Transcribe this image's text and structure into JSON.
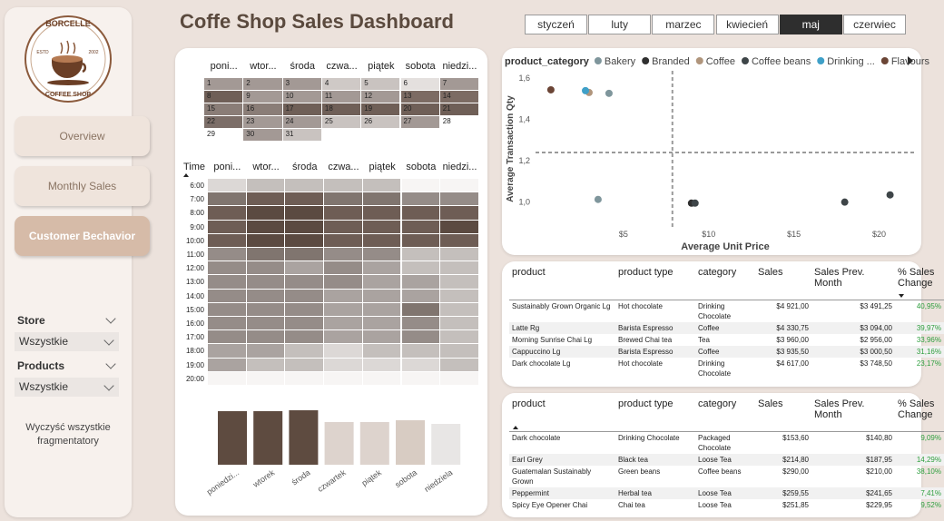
{
  "sidebar": {
    "logo": {
      "brand": "BORCELLE",
      "est": "ESTD",
      "year": "2002",
      "sub": "COFFEE SHOP"
    },
    "nav": [
      "Overview",
      "Monthly Sales",
      "Customer Bechavior"
    ],
    "active_nav": 2,
    "filters": [
      {
        "label": "Store",
        "value": "Wszystkie"
      },
      {
        "label": "Products",
        "value": "Wszystkie"
      }
    ],
    "clear": "Wyczyść wszystkie fragmentatory"
  },
  "header": {
    "title": "Coffe Shop Sales Dashboard",
    "months": [
      "styczeń",
      "luty",
      "marzec",
      "kwiecień",
      "maj",
      "czerwiec"
    ],
    "active_month": 4
  },
  "calendar": {
    "days": [
      "poni...",
      "wtor...",
      "środa",
      "czwa...",
      "piątek",
      "sobota",
      "niedzi..."
    ],
    "weeks": [
      [
        {
          "day": 1,
          "color": "#a39995"
        },
        {
          "day": 2,
          "color": "#a39995"
        },
        {
          "day": 3,
          "color": "#a39995"
        },
        {
          "day": 4,
          "color": "#cfc9c6"
        },
        {
          "day": 5,
          "color": "#c9c3c0"
        },
        {
          "day": 6,
          "color": "#e4e0de"
        },
        {
          "day": 7,
          "color": "#a39995"
        }
      ],
      [
        {
          "day": 8,
          "color": "#6f5f57"
        },
        {
          "day": 9,
          "color": "#a39995"
        },
        {
          "day": 10,
          "color": "#a39995"
        },
        {
          "day": 11,
          "color": "#a39995"
        },
        {
          "day": 12,
          "color": "#a39995"
        },
        {
          "day": 13,
          "color": "#7c6b63"
        },
        {
          "day": 14,
          "color": "#7c6b63"
        }
      ],
      [
        {
          "day": 15,
          "color": "#8a7d77"
        },
        {
          "day": 16,
          "color": "#8a7d77"
        },
        {
          "day": 17,
          "color": "#6f5f57"
        },
        {
          "day": 18,
          "color": "#6f5f57"
        },
        {
          "day": 19,
          "color": "#6f5f57"
        },
        {
          "day": 20,
          "color": "#6f5f57"
        },
        {
          "day": 21,
          "color": "#6f5f57"
        }
      ],
      [
        {
          "day": 22,
          "color": "#7c6e68"
        },
        {
          "day": 23,
          "color": "#a39995"
        },
        {
          "day": 24,
          "color": "#a39995"
        },
        {
          "day": 25,
          "color": "#c9c3c0"
        },
        {
          "day": 26,
          "color": "#c9c3c0"
        },
        {
          "day": 27,
          "color": "#a39995"
        },
        {
          "day": 28,
          "color": "#ffffff"
        }
      ],
      [
        {
          "day": 29,
          "color": "#ffffff"
        },
        {
          "day": 30,
          "color": "#a39995"
        },
        {
          "day": 31,
          "color": "#c9c3c0"
        },
        null,
        null,
        null,
        null
      ]
    ]
  },
  "heatmap": {
    "time_header": "Time",
    "days": [
      "poni...",
      "wtor...",
      "środa",
      "czwa...",
      "piątek",
      "sobota",
      "niedzi..."
    ],
    "rows": [
      {
        "time": "6:00",
        "colors": [
          "#dcd8d6",
          "#c4bfbc",
          "#c4bfbc",
          "#c4bfbc",
          "#c4bfbc",
          "#f7f5f4",
          "#f7f5f4"
        ]
      },
      {
        "time": "7:00",
        "colors": [
          "#80756f",
          "#6e5d55",
          "#6e5d55",
          "#80756f",
          "#80756f",
          "#958c88",
          "#958c88"
        ]
      },
      {
        "time": "8:00",
        "colors": [
          "#6e5d55",
          "#5b4a41",
          "#5b4a41",
          "#6e5d55",
          "#6e5d55",
          "#6e5d55",
          "#6e5d55"
        ]
      },
      {
        "time": "9:00",
        "colors": [
          "#6e5d55",
          "#5b4a41",
          "#5b4a41",
          "#6e5d55",
          "#6e5d55",
          "#6e5d55",
          "#5b4a41"
        ]
      },
      {
        "time": "10:00",
        "colors": [
          "#6e5d55",
          "#5b4a41",
          "#5b4a41",
          "#6e5d55",
          "#6e5d55",
          "#6e5d55",
          "#6e5d55"
        ]
      },
      {
        "time": "11:00",
        "colors": [
          "#958c88",
          "#80756f",
          "#80756f",
          "#958c88",
          "#958c88",
          "#c4bfbc",
          "#c4bfbc"
        ]
      },
      {
        "time": "12:00",
        "colors": [
          "#958c88",
          "#958c88",
          "#aaa3a0",
          "#958c88",
          "#aaa3a0",
          "#c4bfbc",
          "#c4bfbc"
        ]
      },
      {
        "time": "13:00",
        "colors": [
          "#958c88",
          "#958c88",
          "#958c88",
          "#958c88",
          "#aaa3a0",
          "#aaa3a0",
          "#c4bfbc"
        ]
      },
      {
        "time": "14:00",
        "colors": [
          "#958c88",
          "#958c88",
          "#958c88",
          "#aaa3a0",
          "#aaa3a0",
          "#aaa3a0",
          "#c4bfbc"
        ]
      },
      {
        "time": "15:00",
        "colors": [
          "#958c88",
          "#958c88",
          "#958c88",
          "#aaa3a0",
          "#aaa3a0",
          "#80756f",
          "#c4bfbc"
        ]
      },
      {
        "time": "16:00",
        "colors": [
          "#958c88",
          "#958c88",
          "#958c88",
          "#aaa3a0",
          "#aaa3a0",
          "#958c88",
          "#c4bfbc"
        ]
      },
      {
        "time": "17:00",
        "colors": [
          "#958c88",
          "#958c88",
          "#958c88",
          "#aaa3a0",
          "#aaa3a0",
          "#958c88",
          "#c4bfbc"
        ]
      },
      {
        "time": "18:00",
        "colors": [
          "#aaa3a0",
          "#aaa3a0",
          "#c4bfbc",
          "#dcd8d6",
          "#c4bfbc",
          "#c4bfbc",
          "#c4bfbc"
        ]
      },
      {
        "time": "19:00",
        "colors": [
          "#aaa3a0",
          "#c4bfbc",
          "#c4bfbc",
          "#dcd8d6",
          "#dcd8d6",
          "#dcd8d6",
          "#c4bfbc"
        ]
      },
      {
        "time": "20:00",
        "colors": [
          "#f7f5f4",
          "#f7f5f4",
          "#f7f5f4",
          "#f7f5f4",
          "#f7f5f4",
          "#f7f5f4",
          "#f7f5f4"
        ]
      }
    ]
  },
  "chart_data": [
    {
      "type": "bar",
      "categories": [
        "poniedzi...",
        "wtorek",
        "środa",
        "czwartek",
        "piątek",
        "sobota",
        "niedziela"
      ],
      "values": [
        59,
        59,
        60,
        47,
        47,
        49,
        45
      ],
      "colors": [
        "#5e4b40",
        "#5e4b40",
        "#5e4b40",
        "#ddd3cd",
        "#ddd3cd",
        "#d8ccc3",
        "#e8e6e5"
      ],
      "ylim": [
        0,
        60
      ]
    },
    {
      "type": "scatter",
      "legend_title": "product_category",
      "series": [
        {
          "name": "Bakery",
          "color": "#7f969c",
          "x": [
            4.15,
            3.51
          ],
          "y": [
            1.526,
            1.013
          ]
        },
        {
          "name": "Branded",
          "color": "#2f2f2f",
          "x": [
            8.99
          ],
          "y": [
            0.995
          ]
        },
        {
          "name": "Coffee",
          "color": "#b0957c",
          "x": [
            2.98
          ],
          "y": [
            1.53
          ]
        },
        {
          "name": "Coffee beans",
          "color": "#3e4548",
          "x": [
            9.2,
            17.98,
            20.64
          ],
          "y": [
            0.995,
            1.0,
            1.035
          ]
        },
        {
          "name": "Drinking ...",
          "color": "#3fa0c8",
          "x": [
            2.77
          ],
          "y": [
            1.539
          ]
        },
        {
          "name": "Flavours",
          "color": "#6b4536",
          "x": [
            0.74
          ],
          "y": [
            1.543
          ]
        }
      ],
      "xlabel": "Average Unit Price",
      "ylabel": "Average Transaction Qty",
      "xlim": [
        -0.16,
        22.1
      ],
      "ylim": [
        0.88,
        1.635
      ],
      "xticks": [
        {
          "value": 5,
          "label": "$5"
        },
        {
          "value": 10,
          "label": "$10"
        },
        {
          "value": 15,
          "label": "$15"
        },
        {
          "value": 20,
          "label": "$20"
        }
      ],
      "yticks": [
        {
          "value": 1.0,
          "label": "1,0"
        },
        {
          "value": 1.2,
          "label": "1,2"
        },
        {
          "value": 1.4,
          "label": "1,4"
        },
        {
          "value": 1.6,
          "label": "1,6"
        }
      ],
      "reference_lines": {
        "x": 7.87,
        "y": 1.24
      },
      "grid": false
    }
  ],
  "tables": [
    {
      "columns": [
        "product",
        "product type",
        "category",
        "Sales",
        "Sales Prev. Month",
        "% Sales Change"
      ],
      "sort_column": 5,
      "sort": "desc",
      "rows": [
        [
          "Sustainably Grown Organic Lg",
          "Hot chocolate",
          "Drinking Chocolate",
          "$4 921,00",
          "$3 491,25",
          "40,95%"
        ],
        [
          "Latte Rg",
          "Barista Espresso",
          "Coffee",
          "$4 330,75",
          "$3 094,00",
          "39,97%"
        ],
        [
          "Morning Sunrise Chai Lg",
          "Brewed Chai tea",
          "Tea",
          "$3 960,00",
          "$2 956,00",
          "33,96%"
        ],
        [
          "Cappuccino Lg",
          "Barista Espresso",
          "Coffee",
          "$3 935,50",
          "$3 000,50",
          "31,16%"
        ],
        [
          "Dark chocolate Lg",
          "Hot chocolate",
          "Drinking Chocolate",
          "$4 617,00",
          "$3 748,50",
          "23,17%"
        ]
      ]
    },
    {
      "columns": [
        "product",
        "product type",
        "category",
        "Sales",
        "Sales Prev. Month",
        "% Sales Change"
      ],
      "sort_column": 0,
      "sort": "asc",
      "rows": [
        [
          "Dark chocolate",
          "Drinking Chocolate",
          "Packaged Chocolate",
          "$153,60",
          "$140,80",
          "9,09%"
        ],
        [
          "Earl Grey",
          "Black tea",
          "Loose Tea",
          "$214,80",
          "$187,95",
          "14,29%"
        ],
        [
          "Guatemalan Sustainably Grown",
          "Green beans",
          "Coffee beans",
          "$290,00",
          "$210,00",
          "38,10%"
        ],
        [
          "Peppermint",
          "Herbal tea",
          "Loose Tea",
          "$259,55",
          "$241,65",
          "7,41%"
        ],
        [
          "Spicy Eye Opener Chai",
          "Chai tea",
          "Loose Tea",
          "$251,85",
          "$229,95",
          "9,52%"
        ]
      ]
    }
  ]
}
